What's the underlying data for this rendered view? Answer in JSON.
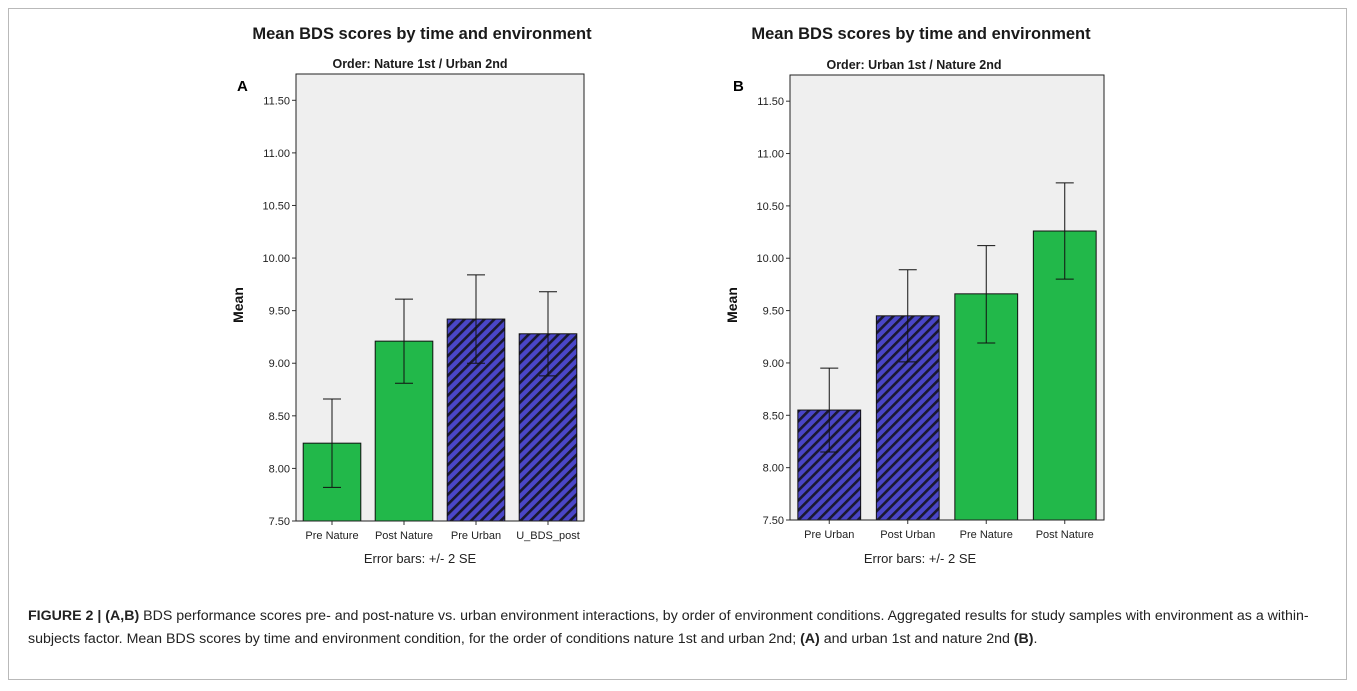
{
  "chart_data": [
    {
      "type": "bar",
      "panel_label": "A",
      "title": "Mean BDS scores by time and environment",
      "subtitle": "Order: Nature 1st / Urban 2nd",
      "xlabel": "Error bars: +/- 2 SE",
      "ylabel": "Mean",
      "ylim": [
        7.5,
        11.75
      ],
      "yticks": [
        "7.50",
        "8.00",
        "8.50",
        "9.00",
        "9.50",
        "10.00",
        "10.50",
        "11.00",
        "11.50"
      ],
      "categories": [
        "Pre Nature",
        "Post Nature",
        "Pre Urban",
        "U_BDS_post"
      ],
      "values": [
        8.24,
        9.21,
        9.42,
        9.28
      ],
      "error_low": [
        7.82,
        8.81,
        9.0,
        8.88
      ],
      "error_high": [
        8.66,
        9.61,
        9.84,
        9.68
      ],
      "bar_styles": [
        "nature",
        "nature",
        "urban",
        "urban"
      ],
      "grid": false
    },
    {
      "type": "bar",
      "panel_label": "B",
      "title": "Mean BDS scores by time and environment",
      "subtitle": "Order: Urban 1st / Nature 2nd",
      "xlabel": "Error bars: +/- 2 SE",
      "ylabel": "Mean",
      "ylim": [
        7.5,
        11.75
      ],
      "yticks": [
        "7.50",
        "8.00",
        "8.50",
        "9.00",
        "9.50",
        "10.00",
        "10.50",
        "11.00",
        "11.50"
      ],
      "categories": [
        "Pre Urban",
        "Post Urban",
        "Pre Nature",
        "Post Nature"
      ],
      "values": [
        8.55,
        9.45,
        9.66,
        10.26
      ],
      "error_low": [
        8.15,
        9.01,
        9.19,
        9.8
      ],
      "error_high": [
        8.95,
        9.89,
        10.12,
        10.72
      ],
      "bar_styles": [
        "urban",
        "urban",
        "nature",
        "nature"
      ],
      "grid": false
    }
  ],
  "colors": {
    "nature_fill": "#22b84a",
    "urban_fill": "#4a46c8",
    "urban_hatch": "#1a1830",
    "plot_background": "#efefef"
  },
  "caption": {
    "figure_label": "FIGURE 2 | ",
    "panels_ref": "(A,B)",
    "text_1": " BDS performance scores pre- and post-nature vs. urban environment interactions, by order of environment conditions. Aggregated results for study samples with environment as a within-subjects factor. Mean BDS scores by time and environment condition, for the order of conditions nature 1st and urban 2nd; ",
    "ref_a": "(A)",
    "text_2": " and urban 1st and nature 2nd ",
    "ref_b": "(B)",
    "text_3": "."
  }
}
